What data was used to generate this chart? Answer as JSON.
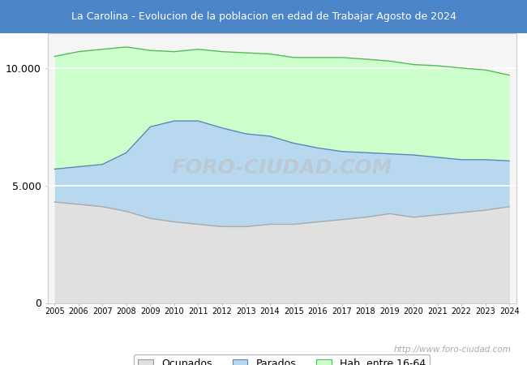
{
  "title": "La Carolina - Evolucion de la poblacion en edad de Trabajar Agosto de 2024",
  "title_bg_color": "#4d86c8",
  "title_text_color": "white",
  "years": [
    2005,
    2006,
    2007,
    2008,
    2009,
    2010,
    2011,
    2012,
    2013,
    2014,
    2015,
    2016,
    2017,
    2018,
    2019,
    2020,
    2021,
    2022,
    2023,
    2024
  ],
  "hab_entre_16_64": [
    10500,
    10700,
    10800,
    10900,
    10750,
    10700,
    10800,
    10700,
    10650,
    10600,
    10450,
    10450,
    10450,
    10380,
    10300,
    10150,
    10100,
    10000,
    9920,
    9700
  ],
  "parados": [
    1400,
    1600,
    1800,
    2500,
    3900,
    4300,
    4400,
    4200,
    3950,
    3750,
    3450,
    3150,
    2900,
    2750,
    2550,
    2650,
    2450,
    2250,
    2150,
    1950
  ],
  "ocupados": [
    4300,
    4200,
    4100,
    3900,
    3600,
    3450,
    3350,
    3250,
    3250,
    3350,
    3350,
    3450,
    3550,
    3650,
    3800,
    3650,
    3750,
    3850,
    3950,
    4100
  ],
  "color_hab": "#ccffcc",
  "color_hab_line": "#55bb55",
  "color_parados": "#b8d8f0",
  "color_parados_line": "#5588bb",
  "color_ocupados": "#e0e0e0",
  "color_ocupados_line": "#aaaaaa",
  "ylim": [
    0,
    11500
  ],
  "yticks": [
    0,
    5000,
    10000
  ],
  "ytick_labels": [
    "0",
    "5.000",
    "10.000"
  ],
  "watermark": "http://www.foro-ciudad.com",
  "legend_labels": [
    "Ocupados",
    "Parados",
    "Hab. entre 16-64"
  ],
  "plot_bg_color": "#f5f5f5",
  "fig_bg_color": "#ffffff"
}
